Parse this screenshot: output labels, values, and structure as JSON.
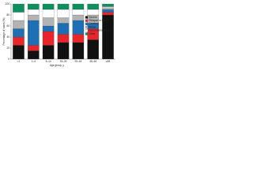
{
  "chart_data": {
    "type": "stacked_bar",
    "y_label": "Percentage of cases (%)",
    "x_label": "Age group, y",
    "categories": [
      "<1",
      "1–4",
      "5–14",
      "15–24",
      "25–44",
      "45–64",
      "≥65"
    ],
    "series": [
      {
        "name": "Severe",
        "color": "#111111",
        "values": [
          25,
          15,
          25,
          30,
          30,
          35,
          80
        ]
      },
      {
        "name": "Relapse or failure",
        "color": "#e8252b",
        "values": [
          15,
          10,
          25,
          15,
          15,
          20,
          5
        ]
      },
      {
        "name": "Cerebral",
        "color": "#1f6fb5",
        "values": [
          15,
          45,
          10,
          20,
          25,
          10,
          5
        ]
      },
      {
        "name": "Renal",
        "color": "#b3b3b3",
        "values": [
          15,
          10,
          15,
          10,
          10,
          15,
          3
        ]
      },
      {
        "name": "Non-malaria febrile",
        "color": "#ffffff",
        "values": [
          15,
          10,
          15,
          15,
          10,
          10,
          2
        ]
      },
      {
        "name": "Other",
        "color": "#0f8f5f",
        "values": [
          15,
          10,
          10,
          10,
          10,
          10,
          5
        ]
      }
    ],
    "ylim": [
      0,
      100
    ],
    "yticks": [
      0,
      20,
      40,
      60,
      80,
      100
    ]
  }
}
